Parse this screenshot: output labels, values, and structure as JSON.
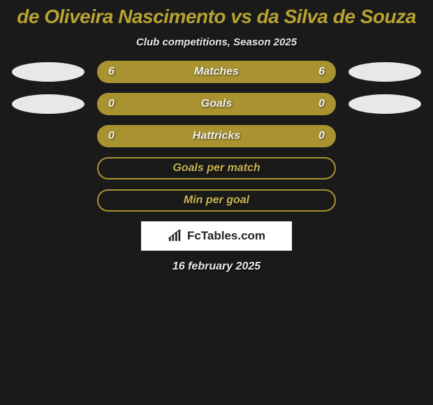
{
  "title": "de Oliveira Nascimento vs da Silva de Souza",
  "subtitle": "Club competitions, Season 2025",
  "rows": [
    {
      "left": "6",
      "label": "Matches",
      "right": "6",
      "style": "fill",
      "ellipseLeft": true,
      "ellipseRight": true
    },
    {
      "left": "0",
      "label": "Goals",
      "right": "0",
      "style": "fill",
      "ellipseLeft": true,
      "ellipseRight": true
    },
    {
      "left": "0",
      "label": "Hattricks",
      "right": "0",
      "style": "fill",
      "ellipseLeft": false,
      "ellipseRight": false
    },
    {
      "left": "",
      "label": "Goals per match",
      "right": "",
      "style": "outline",
      "ellipseLeft": false,
      "ellipseRight": false
    },
    {
      "left": "",
      "label": "Min per goal",
      "right": "",
      "style": "outline",
      "ellipseLeft": false,
      "ellipseRight": false
    }
  ],
  "logo_text": "FcTables.com",
  "date": "16 february 2025",
  "colors": {
    "background": "#1a1a1a",
    "accent": "#a89330",
    "title": "#b8a332",
    "text": "#e8e8e8",
    "ellipse": "#e8e8e8",
    "logo_bg": "#ffffff",
    "logo_text": "#222222"
  }
}
